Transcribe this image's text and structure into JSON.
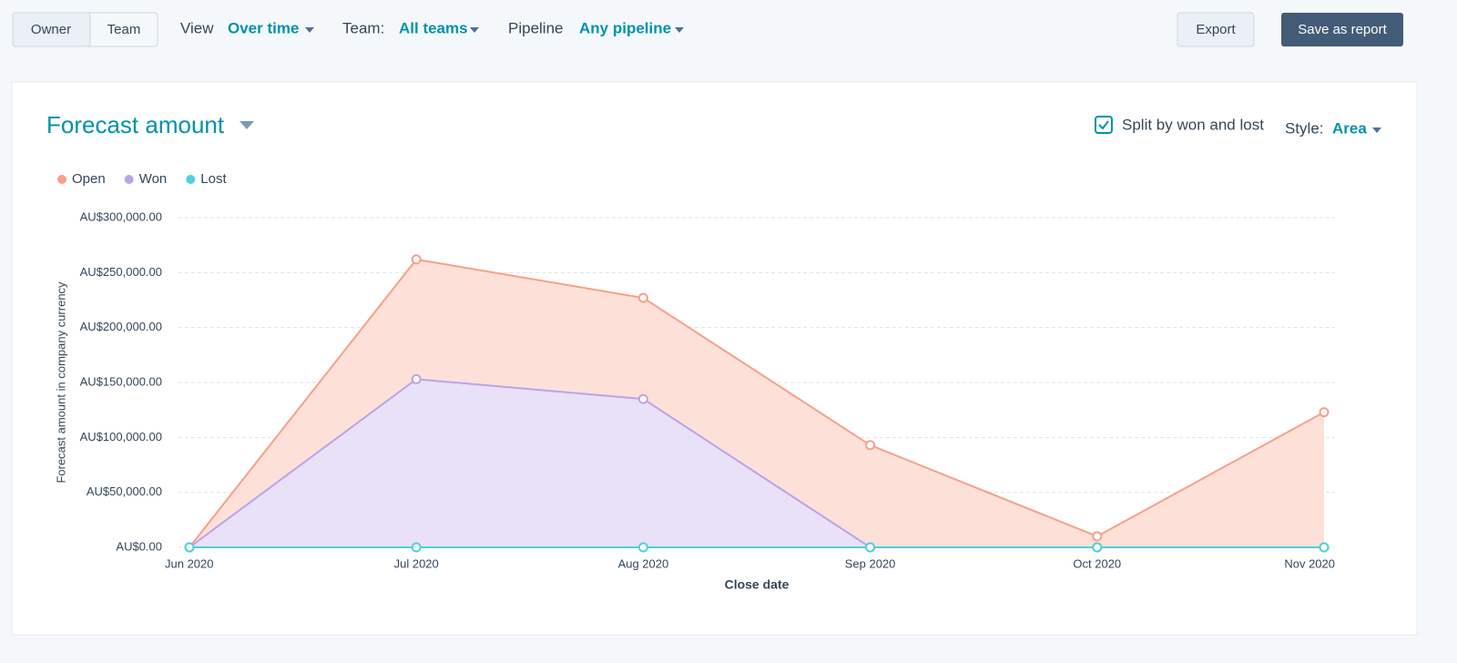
{
  "toolbar": {
    "owner": "Owner",
    "team": "Team",
    "view_label": "View",
    "view_value": "Over time",
    "team_label": "Team:",
    "team_value": "All teams",
    "pipeline_label": "Pipeline",
    "pipeline_value": "Any pipeline",
    "export": "Export",
    "save": "Save as report"
  },
  "card": {
    "title": "Forecast amount",
    "split_label": "Split by won and lost",
    "style_label": "Style:",
    "style_value": "Area"
  },
  "chart_data": {
    "type": "area",
    "categories": [
      "Jun 2020",
      "Jul 2020",
      "Aug 2020",
      "Sep 2020",
      "Oct 2020",
      "Nov 2020"
    ],
    "series": [
      {
        "name": "Open",
        "color": "#f8a088",
        "values": [
          0,
          262000,
          227000,
          93000,
          10000,
          123000
        ]
      },
      {
        "name": "Won",
        "color": "#b9a3ec",
        "values": [
          0,
          153000,
          135000,
          0,
          0,
          0
        ]
      },
      {
        "name": "Lost",
        "color": "#4fd0dc",
        "values": [
          0,
          0,
          0,
          0,
          0,
          0
        ]
      }
    ],
    "ylim": [
      0,
      300000
    ],
    "yticks": [
      {
        "value": 0,
        "label": "AU$0.00"
      },
      {
        "value": 50000,
        "label": "AU$50,000.00"
      },
      {
        "value": 100000,
        "label": "AU$100,000.00"
      },
      {
        "value": 150000,
        "label": "AU$150,000.00"
      },
      {
        "value": 200000,
        "label": "AU$200,000.00"
      },
      {
        "value": 250000,
        "label": "AU$250,000.00"
      },
      {
        "value": 300000,
        "label": "AU$300,000.00"
      }
    ],
    "ylabel": "Forecast amount in company currency",
    "xlabel": "Close date",
    "grid": true
  }
}
